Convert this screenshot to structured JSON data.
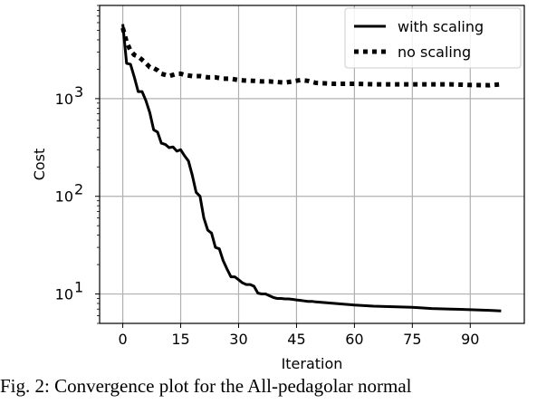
{
  "chart_data": {
    "type": "line",
    "xlabel": "Iteration",
    "ylabel": "Cost",
    "yscale": "log",
    "xlim": [
      -6,
      104
    ],
    "ylim": [
      5,
      9000
    ],
    "xticks": [
      0,
      15,
      30,
      45,
      60,
      75,
      90
    ],
    "yticks": [
      {
        "value": 10,
        "base": "10",
        "exp": "1"
      },
      {
        "value": 100,
        "base": "10",
        "exp": "2"
      },
      {
        "value": 1000,
        "base": "10",
        "exp": "3"
      }
    ],
    "grid": true,
    "legend_position": "top-right",
    "series": [
      {
        "name": "with scaling",
        "style": "solid",
        "color": "#000000",
        "x": [
          0,
          1,
          2,
          3,
          4,
          5,
          6,
          7,
          8,
          9,
          10,
          11,
          12,
          13,
          14,
          15,
          16,
          17,
          18,
          19,
          20,
          21,
          22,
          23,
          24,
          25,
          26,
          27,
          28,
          29,
          30,
          31,
          32,
          33,
          34,
          35,
          36,
          37,
          38,
          39,
          40,
          41,
          42,
          43,
          44,
          45,
          46,
          47,
          48,
          49,
          50,
          55,
          60,
          65,
          70,
          75,
          80,
          85,
          90,
          95,
          98
        ],
        "y": [
          5800,
          2300,
          2250,
          1650,
          1180,
          1180,
          950,
          720,
          480,
          455,
          350,
          340,
          315,
          320,
          290,
          300,
          260,
          230,
          165,
          110,
          100,
          60,
          45,
          42,
          30,
          29,
          22,
          18,
          15,
          15,
          14,
          13,
          12.5,
          12.5,
          12,
          10.2,
          10,
          10,
          9.6,
          9.2,
          9,
          9,
          8.9,
          8.9,
          8.8,
          8.7,
          8.6,
          8.5,
          8.4,
          8.4,
          8.3,
          8,
          7.7,
          7.5,
          7.4,
          7.3,
          7.1,
          7,
          6.9,
          6.8,
          6.7
        ]
      },
      {
        "name": "no scaling",
        "style": "dotted",
        "color": "#000000",
        "x": [
          0,
          1,
          2,
          3,
          4,
          5,
          6,
          7,
          8,
          9,
          10,
          11,
          12,
          13,
          14,
          15,
          16,
          18,
          20,
          22,
          24,
          26,
          28,
          30,
          32,
          34,
          36,
          38,
          40,
          42,
          44,
          46,
          48,
          50,
          55,
          60,
          65,
          70,
          75,
          80,
          85,
          90,
          95,
          98
        ],
        "y": [
          5300,
          3800,
          3100,
          2800,
          2700,
          2500,
          2300,
          2100,
          2050,
          1950,
          1800,
          1750,
          1700,
          1750,
          1800,
          1800,
          1750,
          1700,
          1700,
          1650,
          1650,
          1600,
          1600,
          1550,
          1530,
          1520,
          1500,
          1500,
          1480,
          1460,
          1500,
          1550,
          1520,
          1450,
          1420,
          1420,
          1400,
          1400,
          1400,
          1400,
          1400,
          1380,
          1370,
          1400
        ]
      }
    ]
  },
  "caption": "Fig. 2: Convergence plot for the All-pedagolar normal"
}
